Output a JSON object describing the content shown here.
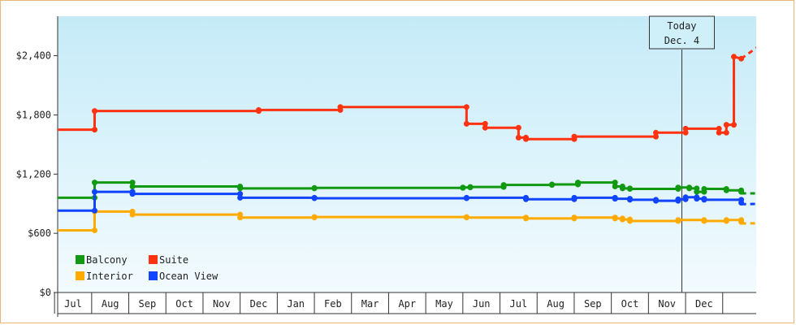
{
  "chart_data": {
    "type": "line",
    "title": "",
    "xlabel": "",
    "ylabel": "",
    "ylim": [
      0,
      2800
    ],
    "y_ticks": [
      {
        "value": 0,
        "label": "$0"
      },
      {
        "value": 600,
        "label": "$600"
      },
      {
        "value": 1200,
        "label": "$1,200"
      },
      {
        "value": 1800,
        "label": "$1,800"
      },
      {
        "value": 2400,
        "label": "$2,400"
      }
    ],
    "month_labels": [
      "Jul",
      "Aug",
      "Sep",
      "Oct",
      "Nov",
      "Dec",
      "Jan",
      "Feb",
      "Mar",
      "Apr",
      "May",
      "Jun",
      "Jul",
      "Aug",
      "Sep",
      "Oct",
      "Nov",
      "Dec"
    ],
    "x_unit": "months from Jun 1",
    "xlim": [
      0.48,
      19.3
    ],
    "today": {
      "x": 17.4,
      "line1": "Today",
      "line2": "Dec. 4"
    },
    "legend_placement": "bottom-left",
    "grid": false,
    "series": [
      {
        "name": "Balcony",
        "color": "#119911",
        "values": [
          [
            0.48,
            960
          ],
          [
            1.58,
            960
          ],
          [
            1.58,
            1115
          ],
          [
            2.6,
            1115
          ],
          [
            2.6,
            1075
          ],
          [
            5.5,
            1075
          ],
          [
            5.5,
            1055
          ],
          [
            7.5,
            1055
          ],
          [
            7.5,
            1060
          ],
          [
            11.5,
            1060
          ],
          [
            11.5,
            1065
          ],
          [
            11.7,
            1065
          ],
          [
            11.7,
            1070
          ],
          [
            12.6,
            1070
          ],
          [
            12.6,
            1090
          ],
          [
            13.9,
            1090
          ],
          [
            13.9,
            1095
          ],
          [
            14.6,
            1095
          ],
          [
            14.6,
            1115
          ],
          [
            15.6,
            1115
          ],
          [
            15.6,
            1075
          ],
          [
            15.8,
            1075
          ],
          [
            15.8,
            1055
          ],
          [
            16.0,
            1055
          ],
          [
            16.0,
            1050
          ],
          [
            17.3,
            1050
          ],
          [
            17.3,
            1065
          ],
          [
            17.6,
            1065
          ],
          [
            17.6,
            1055
          ],
          [
            17.8,
            1055
          ],
          [
            17.8,
            1020
          ],
          [
            18.0,
            1020
          ],
          [
            18.0,
            1050
          ],
          [
            18.6,
            1050
          ],
          [
            18.6,
            1035
          ],
          [
            19.0,
            1035
          ],
          [
            19.0,
            1020
          ]
        ],
        "projection": [
          [
            19.0,
            1005
          ],
          [
            20.6,
            1005
          ]
        ]
      },
      {
        "name": "Suite",
        "color": "#ff3311",
        "values": [
          [
            0.48,
            1650
          ],
          [
            1.58,
            1650
          ],
          [
            1.58,
            1840
          ],
          [
            6.0,
            1840
          ],
          [
            6.0,
            1850
          ],
          [
            8.2,
            1850
          ],
          [
            8.2,
            1880
          ],
          [
            11.6,
            1880
          ],
          [
            11.6,
            1710
          ],
          [
            12.1,
            1710
          ],
          [
            12.1,
            1670
          ],
          [
            13.0,
            1670
          ],
          [
            13.0,
            1570
          ],
          [
            13.2,
            1570
          ],
          [
            13.2,
            1555
          ],
          [
            14.5,
            1555
          ],
          [
            14.5,
            1580
          ],
          [
            16.7,
            1580
          ],
          [
            16.7,
            1620
          ],
          [
            17.5,
            1620
          ],
          [
            17.5,
            1660
          ],
          [
            18.4,
            1660
          ],
          [
            18.4,
            1620
          ],
          [
            18.6,
            1620
          ],
          [
            18.6,
            1700
          ],
          [
            18.8,
            1700
          ],
          [
            18.8,
            2390
          ],
          [
            19.0,
            2370
          ]
        ],
        "projection": [
          [
            19.0,
            2370
          ],
          [
            20.6,
            2800
          ]
        ]
      },
      {
        "name": "Interior",
        "color": "#ffaa00",
        "values": [
          [
            0.48,
            630
          ],
          [
            1.58,
            630
          ],
          [
            1.58,
            820
          ],
          [
            2.6,
            820
          ],
          [
            2.6,
            790
          ],
          [
            5.5,
            790
          ],
          [
            5.5,
            760
          ],
          [
            7.5,
            760
          ],
          [
            7.5,
            765
          ],
          [
            11.6,
            765
          ],
          [
            11.6,
            760
          ],
          [
            13.2,
            760
          ],
          [
            13.2,
            750
          ],
          [
            14.5,
            750
          ],
          [
            14.5,
            760
          ],
          [
            15.6,
            760
          ],
          [
            15.6,
            750
          ],
          [
            15.8,
            750
          ],
          [
            15.8,
            740
          ],
          [
            16.0,
            740
          ],
          [
            16.0,
            725
          ],
          [
            17.3,
            725
          ],
          [
            17.3,
            735
          ],
          [
            18.0,
            735
          ],
          [
            18.0,
            725
          ],
          [
            18.6,
            725
          ],
          [
            18.6,
            735
          ],
          [
            19.0,
            735
          ],
          [
            19.0,
            715
          ]
        ],
        "projection": [
          [
            19.0,
            700
          ],
          [
            20.6,
            705
          ]
        ]
      },
      {
        "name": "Ocean View",
        "color": "#1144ff",
        "values": [
          [
            0.48,
            830
          ],
          [
            1.58,
            830
          ],
          [
            1.58,
            1020
          ],
          [
            2.6,
            1020
          ],
          [
            2.6,
            1000
          ],
          [
            5.5,
            1000
          ],
          [
            5.5,
            960
          ],
          [
            7.5,
            960
          ],
          [
            7.5,
            955
          ],
          [
            11.6,
            955
          ],
          [
            11.6,
            960
          ],
          [
            13.2,
            960
          ],
          [
            13.2,
            945
          ],
          [
            14.5,
            945
          ],
          [
            14.5,
            960
          ],
          [
            15.6,
            960
          ],
          [
            15.6,
            950
          ],
          [
            16.0,
            950
          ],
          [
            16.0,
            940
          ],
          [
            16.7,
            940
          ],
          [
            16.7,
            930
          ],
          [
            17.3,
            930
          ],
          [
            17.3,
            945
          ],
          [
            17.5,
            945
          ],
          [
            17.5,
            965
          ],
          [
            17.8,
            965
          ],
          [
            17.8,
            950
          ],
          [
            18.0,
            950
          ],
          [
            18.0,
            940
          ],
          [
            19.0,
            940
          ],
          [
            19.0,
            910
          ]
        ],
        "projection": [
          [
            19.0,
            895
          ],
          [
            20.6,
            905
          ]
        ]
      }
    ]
  }
}
